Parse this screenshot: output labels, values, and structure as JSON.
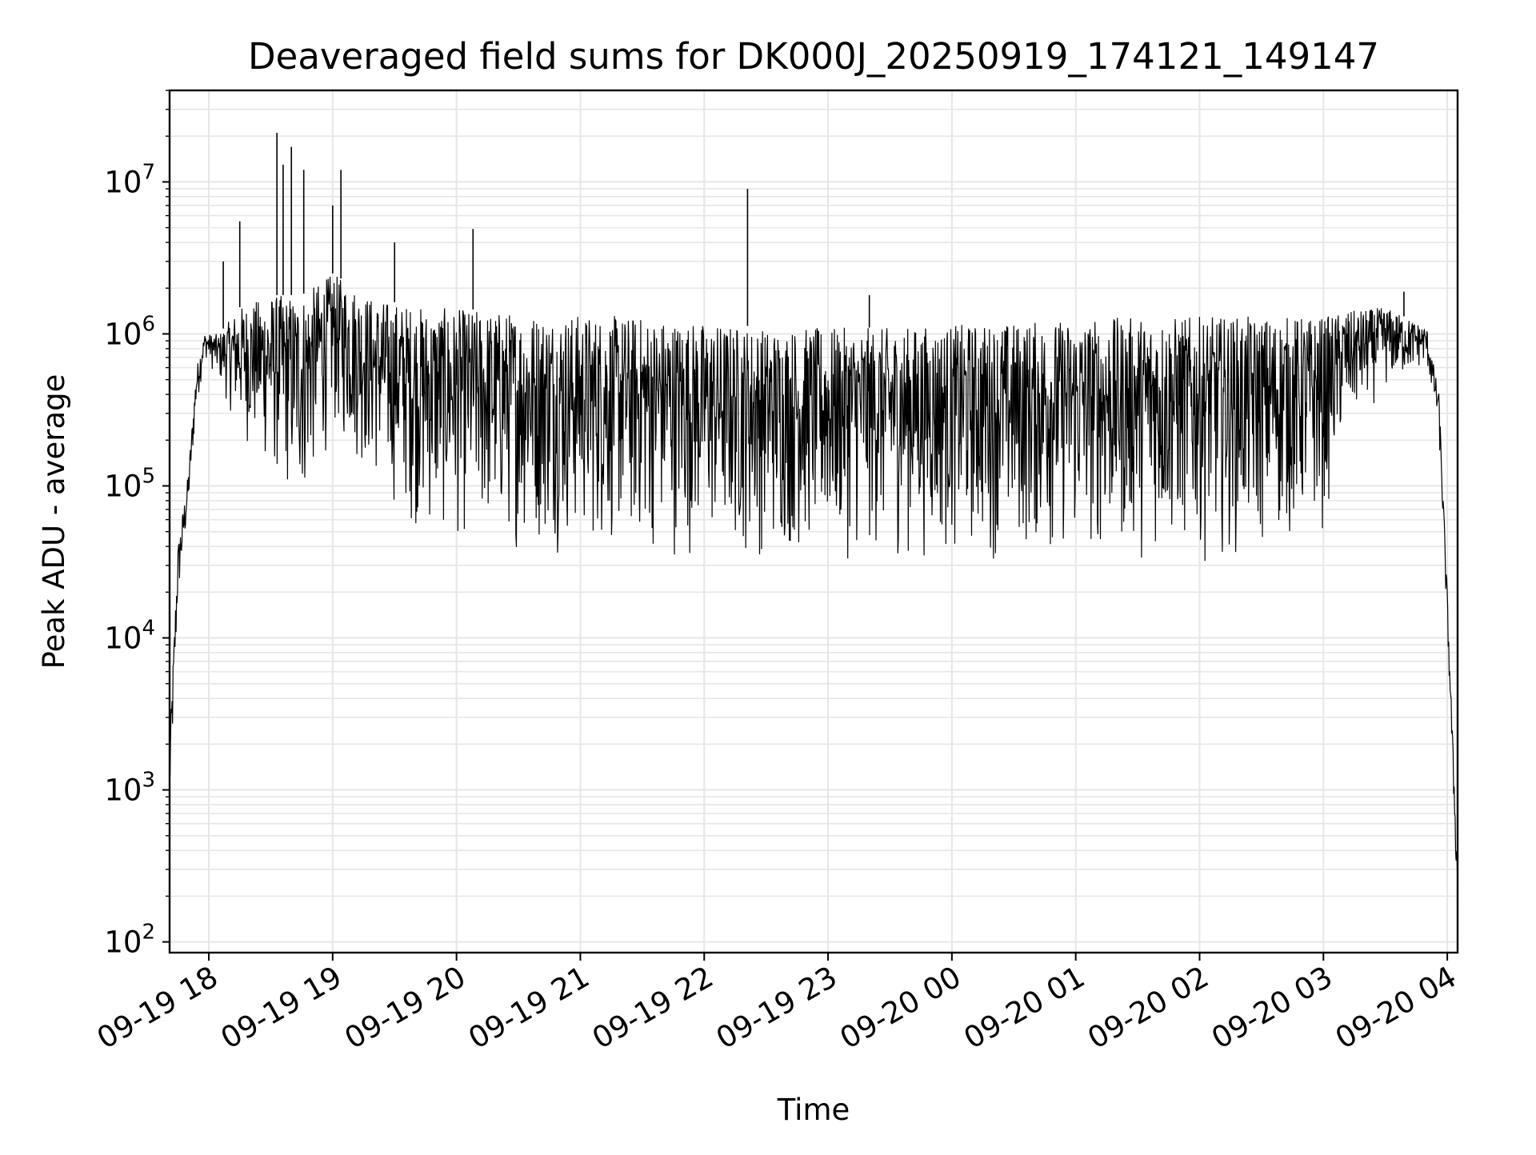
{
  "chart_data": {
    "type": "line",
    "title": "Deaveraged field sums for DK000J_20250919_174121_149147",
    "xlabel": "Time",
    "ylabel": "Peak ADU - average",
    "x_scale": "time",
    "y_scale": "log",
    "xlim": [
      "2025-09-19 17:41",
      "2025-09-20 04:05"
    ],
    "ylim": [
      85,
      40000000
    ],
    "grid": true,
    "legend": false,
    "line_color": "#000000",
    "grid_color": "#e6e6e6",
    "x_ticks": [
      {
        "value": "2025-09-19 18:00",
        "label": "09-19 18"
      },
      {
        "value": "2025-09-19 19:00",
        "label": "09-19 19"
      },
      {
        "value": "2025-09-19 20:00",
        "label": "09-19 20"
      },
      {
        "value": "2025-09-19 21:00",
        "label": "09-19 21"
      },
      {
        "value": "2025-09-19 22:00",
        "label": "09-19 22"
      },
      {
        "value": "2025-09-19 23:00",
        "label": "09-19 23"
      },
      {
        "value": "2025-09-20 00:00",
        "label": "09-20 00"
      },
      {
        "value": "2025-09-20 01:00",
        "label": "09-20 01"
      },
      {
        "value": "2025-09-20 02:00",
        "label": "09-20 02"
      },
      {
        "value": "2025-09-20 03:00",
        "label": "09-20 03"
      },
      {
        "value": "2025-09-20 04:00",
        "label": "09-20 04"
      }
    ],
    "y_ticks": [
      {
        "value": 100,
        "base": "10",
        "exp": "2"
      },
      {
        "value": 1000,
        "base": "10",
        "exp": "3"
      },
      {
        "value": 10000,
        "base": "10",
        "exp": "4"
      },
      {
        "value": 100000,
        "base": "10",
        "exp": "5"
      },
      {
        "value": 1000000,
        "base": "10",
        "exp": "6"
      },
      {
        "value": 10000000,
        "base": "10",
        "exp": "7"
      }
    ],
    "envelope": [
      {
        "x": "2025-09-19 17:41",
        "low": 500,
        "high": 2000
      },
      {
        "x": "2025-09-19 17:45",
        "low": 15000,
        "high": 40000
      },
      {
        "x": "2025-09-19 17:50",
        "low": 60000,
        "high": 120000
      },
      {
        "x": "2025-09-19 17:54",
        "low": 300000,
        "high": 600000
      },
      {
        "x": "2025-09-19 17:58",
        "low": 700000,
        "high": 1000000
      },
      {
        "x": "2025-09-19 18:05",
        "low": 450000,
        "high": 1000000
      },
      {
        "x": "2025-09-19 18:15",
        "low": 200000,
        "high": 1500000
      },
      {
        "x": "2025-09-19 18:30",
        "low": 100000,
        "high": 1800000
      },
      {
        "x": "2025-09-19 18:45",
        "low": 55000,
        "high": 1800000
      },
      {
        "x": "2025-09-19 19:00",
        "low": 200000,
        "high": 2500000
      },
      {
        "x": "2025-09-19 19:20",
        "low": 90000,
        "high": 1700000
      },
      {
        "x": "2025-09-19 19:45",
        "low": 40000,
        "high": 1500000
      },
      {
        "x": "2025-09-19 20:30",
        "low": 35000,
        "high": 1400000
      },
      {
        "x": "2025-09-19 21:30",
        "low": 32000,
        "high": 1300000
      },
      {
        "x": "2025-09-19 22:30",
        "low": 30000,
        "high": 1100000
      },
      {
        "x": "2025-09-19 23:30",
        "low": 30000,
        "high": 1100000
      },
      {
        "x": "2025-09-20 00:30",
        "low": 30000,
        "high": 1200000
      },
      {
        "x": "2025-09-20 01:30",
        "low": 30000,
        "high": 1300000
      },
      {
        "x": "2025-09-20 02:30",
        "low": 32000,
        "high": 1300000
      },
      {
        "x": "2025-09-20 03:00",
        "low": 45000,
        "high": 1300000
      },
      {
        "x": "2025-09-20 03:10",
        "low": 200000,
        "high": 1400000
      },
      {
        "x": "2025-09-20 03:30",
        "low": 400000,
        "high": 1500000
      },
      {
        "x": "2025-09-20 03:50",
        "low": 600000,
        "high": 1100000
      },
      {
        "x": "2025-09-20 03:56",
        "low": 200000,
        "high": 400000
      },
      {
        "x": "2025-09-20 04:00",
        "low": 10000,
        "high": 20000
      },
      {
        "x": "2025-09-20 04:05",
        "low": 150,
        "high": 300
      }
    ],
    "spikes": [
      {
        "x": "2025-09-19 18:07",
        "y": 3000000
      },
      {
        "x": "2025-09-19 18:15",
        "y": 5500000
      },
      {
        "x": "2025-09-19 18:33",
        "y": 21000000
      },
      {
        "x": "2025-09-19 18:36",
        "y": 13000000
      },
      {
        "x": "2025-09-19 18:40",
        "y": 17000000
      },
      {
        "x": "2025-09-19 18:46",
        "y": 12000000
      },
      {
        "x": "2025-09-19 19:00",
        "y": 7000000
      },
      {
        "x": "2025-09-19 19:04",
        "y": 12000000
      },
      {
        "x": "2025-09-19 19:30",
        "y": 4000000
      },
      {
        "x": "2025-09-19 20:08",
        "y": 4900000
      },
      {
        "x": "2025-09-19 22:21",
        "y": 9000000
      },
      {
        "x": "2025-09-19 23:20",
        "y": 1800000
      },
      {
        "x": "2025-09-20 03:39",
        "y": 1900000
      }
    ]
  }
}
